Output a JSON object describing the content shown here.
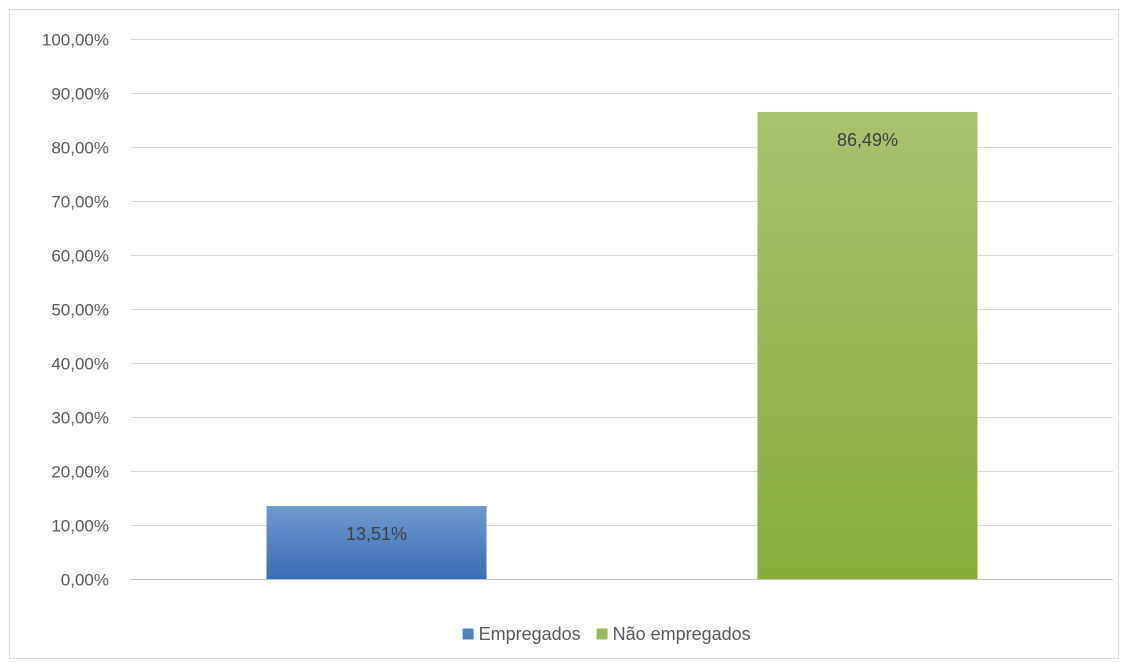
{
  "chart_data": {
    "type": "bar",
    "categories": [
      "Empregados",
      "Não empregados"
    ],
    "series": [
      {
        "values": [
          13.51,
          86.49
        ],
        "data_labels": [
          "13,51%",
          "86,49%"
        ],
        "colors": [
          "#4f81bd",
          "#9bbb59"
        ]
      }
    ],
    "ylim": [
      0,
      100
    ],
    "yticks": [
      0,
      10,
      20,
      30,
      40,
      50,
      60,
      70,
      80,
      90,
      100
    ],
    "ytick_labels": [
      "0,00%",
      "10,00%",
      "20,00%",
      "30,00%",
      "40,00%",
      "50,00%",
      "60,00%",
      "70,00%",
      "80,00%",
      "90,00%",
      "100,00%"
    ],
    "grid": true,
    "legend": {
      "placement": "bottom",
      "entries": [
        {
          "label": "Empregados",
          "color": "#4f81bd"
        },
        {
          "label": "Não empregados",
          "color": "#9bbb59"
        }
      ]
    },
    "title": "",
    "xlabel": "",
    "ylabel": ""
  }
}
